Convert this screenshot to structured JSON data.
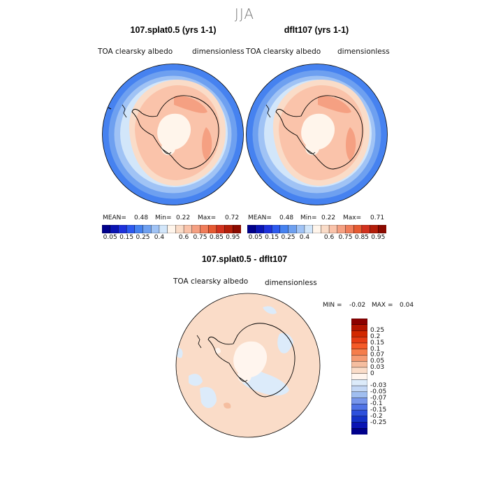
{
  "season": "JJA",
  "panels": [
    {
      "title": "107.splat0.5 (yrs 1-1)",
      "variable": "TOA clearsky albedo",
      "units": "dimensionless",
      "mean_label": "MEAN=",
      "mean": "0.48",
      "min_label": "Min=",
      "min": "0.22",
      "max_label": "Max=",
      "max": "0.72"
    },
    {
      "title": "dflt107 (yrs 1-1)",
      "variable": "TOA clearsky albedo",
      "units": "dimensionless",
      "mean_label": "MEAN=",
      "mean": "0.48",
      "min_label": "Min=",
      "min": "0.22",
      "max_label": "Max=",
      "max": "0.71"
    }
  ],
  "abs_colorbar": {
    "colors": [
      "#00008c",
      "#0a14b4",
      "#1e32dc",
      "#2d5af0",
      "#4682f0",
      "#6ea0f0",
      "#a0c3f5",
      "#d2e6fa",
      "#fff5eb",
      "#fadcc8",
      "#fac3aa",
      "#f5a082",
      "#f07d5a",
      "#e65a32",
      "#d2321e",
      "#b41e0a",
      "#8c0a00"
    ],
    "ticks": [
      "0.05",
      "0.15",
      "0.25",
      "0.4",
      "0.6",
      "0.75",
      "0.85",
      "0.95"
    ]
  },
  "diff_panel": {
    "title": "107.splat0.5 - dflt107",
    "variable": "TOA clearsky albedo",
    "units": "dimensionless",
    "min_label": "MIN =",
    "min": "-0.02",
    "max_label": "MAX =",
    "max": "0.04"
  },
  "diff_colorbar": {
    "colors": [
      "#8c0000",
      "#b41400",
      "#d22800",
      "#e63c14",
      "#f55a28",
      "#f57d4b",
      "#f59b73",
      "#f5bea0",
      "#fadcc8",
      "#fff5ee",
      "#dcebfa",
      "#c3d7f5",
      "#a0bef0",
      "#7896eb",
      "#5073e6",
      "#2d50dc",
      "#1432c8",
      "#0a14b4",
      "#00008c"
    ],
    "ticks": [
      "0.25",
      "0.2",
      "0.15",
      "0.1",
      "0.07",
      "0.05",
      "0.03",
      "0",
      "-0.03",
      "-0.05",
      "-0.07",
      "-0.1",
      "-0.15",
      "-0.2",
      "-0.25"
    ]
  }
}
